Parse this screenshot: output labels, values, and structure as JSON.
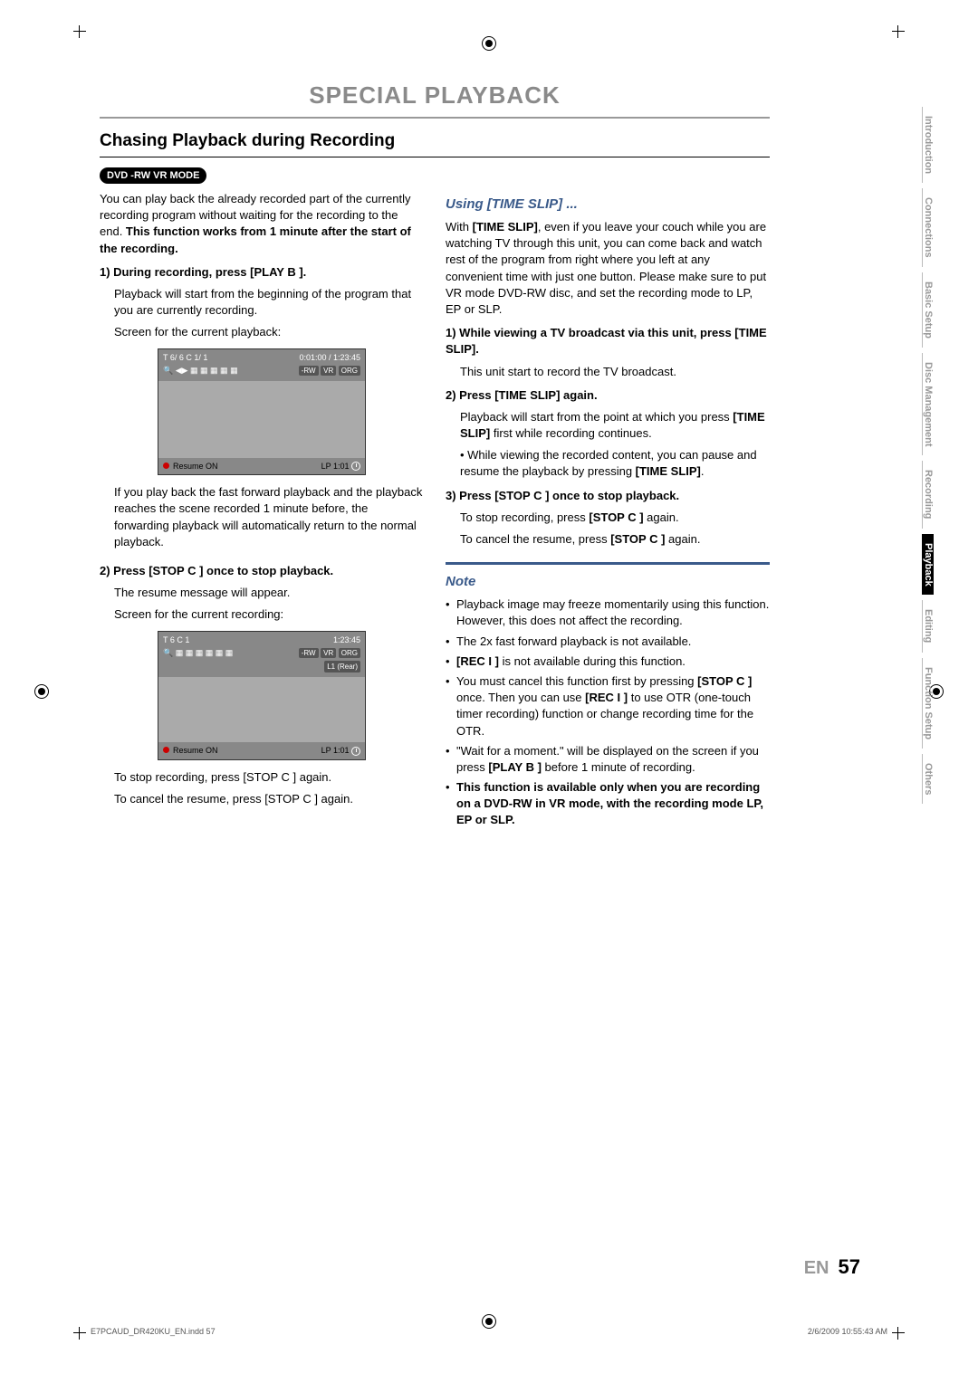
{
  "mainTitle": "SPECIAL PLAYBACK",
  "sectionTitle": "Chasing Playback during Recording",
  "dvdBadge": "DVD -RW VR MODE",
  "left": {
    "intro1": "You can play back the already recorded part of the currently recording program without waiting for the recording to the end. ",
    "intro1b": "This function works from 1 minute after the start of the recording.",
    "step1t": "1) During recording, press [PLAY B ].",
    "step1a": "Playback will start from the beginning of the program that you are currently recording.",
    "step1b": "Screen for the current playback:",
    "afterScreen1": "If you play back the fast forward playback and the playback reaches the scene recorded 1 minute before, the forwarding playback will automatically return to the normal playback.",
    "step2t": "2) Press [STOP C ] once to stop playback.",
    "step2a": "The resume message will appear.",
    "step2b": "Screen for the current recording:",
    "afterScreen2a": "To stop recording, press [STOP C ] again.",
    "afterScreen2b": "To cancel the resume, press [STOP C ] again."
  },
  "right": {
    "subTitle": "Using [TIME SLIP] ...",
    "intro": "With [TIME SLIP], even if you leave your couch while you are watching TV through this unit, you can come back and watch rest of the program from right where you left at any convenient time with just one button. Please make sure to put VR mode DVD-RW disc, and set the recording mode to LP, EP or SLP.",
    "s1t": "1) While viewing a TV broadcast via this unit, press [TIME SLIP].",
    "s1a": "This unit start to record the TV broadcast.",
    "s2t": "2) Press [TIME SLIP] again.",
    "s2a": "Playback will start from the point at which you press [TIME SLIP] first while recording continues.",
    "s2b": "While viewing the recorded content, you can pause and resume the playback by pressing [TIME SLIP].",
    "s3t": "3) Press [STOP C ] once to stop playback.",
    "s3a": "To stop recording, press [STOP C ] again.",
    "s3b": "To cancel the resume, press [STOP C ] again.",
    "noteTitle": "Note",
    "notes": [
      "Playback image may freeze momentarily using this function.\nHowever, this does not affect the recording.",
      "The 2x fast forward playback is not available.",
      "[REC I ] is not available during this function.",
      "You must cancel this function first by pressing [STOP C ] once. Then you can use [REC I ] to use OTR (one-touch timer recording) function or change recording time for the OTR.",
      "\"Wait for a moment.\" will be displayed on the screen if you press [PLAY B ] before 1 minute of recording.",
      "This function is available only when you are recording on a DVD-RW in VR mode, with the recording mode LP, EP or SLP."
    ]
  },
  "screens": {
    "s1": {
      "tl": "T  6/  6 C  1/  1",
      "tr": "0:01:00 / 1:23:45",
      "tags": [
        "-RW",
        "VR",
        "ORG"
      ],
      "bl": "Resume ON",
      "br": "LP     1:01",
      "l1": ""
    },
    "s2": {
      "tl": "T       6 C        1",
      "tr": "1:23:45",
      "tags": [
        "-RW",
        "VR",
        "ORG"
      ],
      "bl": "Resume ON",
      "br": "LP     1:01",
      "l1": "L1 (Rear)"
    }
  },
  "tabs": [
    "Introduction",
    "Connections",
    "Basic Setup",
    "Disc Management",
    "Recording",
    "Playback",
    "Editing",
    "Function Setup",
    "Others"
  ],
  "activeTab": "Playback",
  "page": {
    "lang": "EN",
    "num": "57"
  },
  "footer": {
    "left": "E7PCAUD_DR420KU_EN.indd   57",
    "right": "2/6/2009   10:55:43 AM"
  }
}
